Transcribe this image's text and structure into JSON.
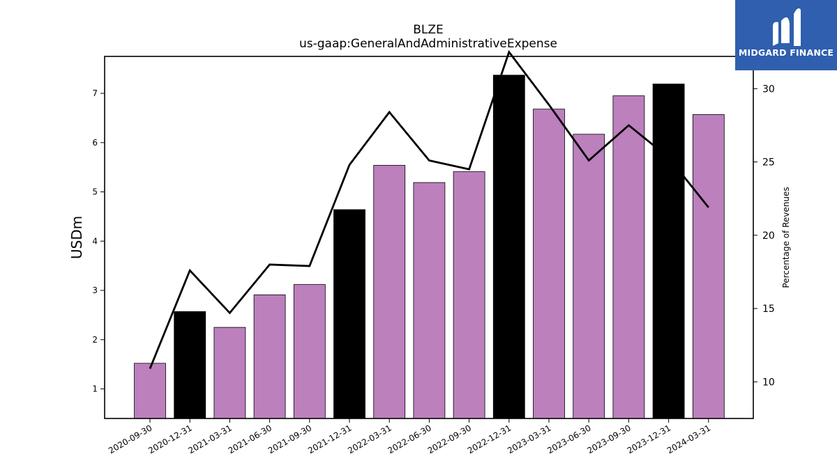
{
  "chart_data": {
    "type": "bar",
    "title": "BLZE",
    "subtitle": "us-gaap:GeneralAndAdministrativeExpense",
    "ylabel": "USDm",
    "y2label": "Percentage of Revenues",
    "categories": [
      "2020-09-30",
      "2020-12-31",
      "2021-03-31",
      "2021-06-30",
      "2021-09-30",
      "2021-12-31",
      "2022-03-31",
      "2022-06-30",
      "2022-09-30",
      "2022-12-31",
      "2023-03-31",
      "2023-06-30",
      "2023-09-30",
      "2023-12-31",
      "2024-03-31"
    ],
    "series": [
      {
        "type": "bar",
        "axis": "left",
        "values": [
          1.52,
          2.57,
          2.25,
          2.91,
          3.12,
          4.64,
          5.54,
          5.19,
          5.41,
          7.37,
          6.68,
          6.17,
          6.95,
          7.19,
          6.57
        ],
        "highlight": [
          false,
          true,
          false,
          false,
          false,
          true,
          false,
          false,
          false,
          true,
          false,
          false,
          false,
          true,
          false
        ]
      },
      {
        "type": "line",
        "axis": "right",
        "values": [
          10.9,
          17.6,
          14.7,
          18.0,
          17.9,
          24.8,
          28.4,
          25.1,
          24.5,
          32.5,
          28.9,
          25.1,
          27.5,
          25.3,
          21.9
        ]
      }
    ],
    "ylim": [
      0.4,
      7.75
    ],
    "y2lim": [
      7.5,
      32.2
    ],
    "yticks": [
      1,
      2,
      3,
      4,
      5,
      6,
      7
    ],
    "y2ticks": [
      10,
      15,
      20,
      25,
      30
    ],
    "colors": {
      "bar": "#bc80bd",
      "bar_highlight": "#000000",
      "line": "#000000"
    },
    "grid": false,
    "legend": "none"
  },
  "logo": {
    "text": "MIDGARD FINANCE"
  }
}
